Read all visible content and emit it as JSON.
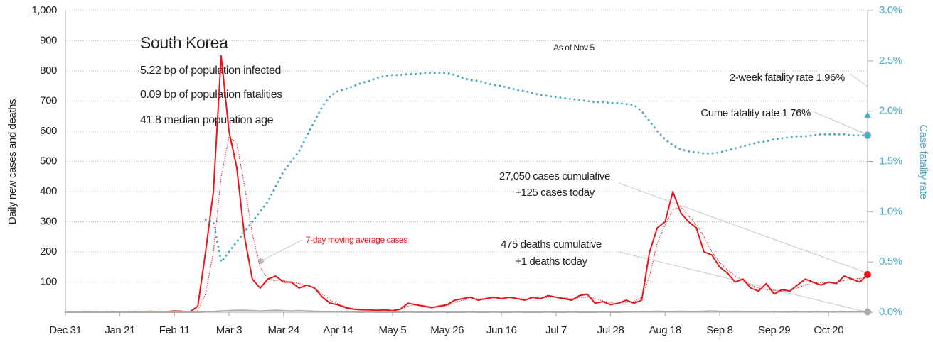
{
  "chart_data": {
    "type": "line",
    "title": "South Korea",
    "subtitle_lines": [
      "5.22 bp of population infected",
      "0.09 bp of population fatalities",
      "41.8 median population age"
    ],
    "as_of": "As of Nov 5",
    "ylabel": "Daily new cases and deaths",
    "y2label": "Case fatality rate",
    "categories": [
      "Dec 31",
      null,
      null,
      null,
      null,
      null,
      null,
      "Jan 21",
      null,
      null,
      null,
      null,
      null,
      null,
      "Feb 11",
      null,
      null,
      null,
      null,
      null,
      null,
      "Mar 3",
      null,
      null,
      null,
      null,
      null,
      null,
      "Mar 24",
      null,
      null,
      null,
      null,
      null,
      null,
      "Apr 14",
      null,
      null,
      null,
      null,
      null,
      null,
      "May 5",
      null,
      null,
      null,
      null,
      null,
      null,
      "May 26",
      null,
      null,
      null,
      null,
      null,
      null,
      "Jun 16",
      null,
      null,
      null,
      null,
      null,
      null,
      "Jul 7",
      null,
      null,
      null,
      null,
      null,
      null,
      "Jul 28",
      null,
      null,
      null,
      null,
      null,
      null,
      "Aug 18",
      null,
      null,
      null,
      null,
      null,
      null,
      "Sep 8",
      null,
      null,
      null,
      null,
      null,
      null,
      "Sep 29",
      null,
      null,
      null,
      null,
      null,
      null,
      "Oct 20",
      null,
      null,
      null,
      null,
      null
    ],
    "series": [
      {
        "color": "#e8151b",
        "line_style": "solid",
        "width": 2,
        "end_marker": "circle",
        "values": [
          0,
          0,
          0,
          1,
          0,
          0,
          1,
          0,
          0,
          1,
          2,
          3,
          1,
          2,
          4,
          3,
          1,
          20,
          200,
          400,
          850,
          600,
          480,
          250,
          110,
          80,
          110,
          120,
          100,
          100,
          80,
          90,
          80,
          50,
          30,
          25,
          15,
          10,
          8,
          8,
          6,
          8,
          5,
          10,
          30,
          25,
          20,
          15,
          20,
          25,
          40,
          45,
          50,
          40,
          45,
          50,
          45,
          50,
          45,
          40,
          50,
          45,
          55,
          50,
          45,
          40,
          55,
          60,
          30,
          35,
          25,
          30,
          40,
          30,
          40,
          200,
          280,
          300,
          400,
          330,
          300,
          280,
          200,
          190,
          150,
          130,
          100,
          110,
          80,
          70,
          95,
          60,
          75,
          70,
          90,
          110,
          100,
          90,
          100,
          95,
          120,
          110,
          100,
          125
        ]
      },
      {
        "color": "#e8151b",
        "line_style": "dotted",
        "width": 1.2,
        "values": [
          0,
          0,
          0,
          0,
          0,
          0,
          0,
          0,
          0,
          1,
          1,
          1,
          2,
          2,
          2,
          2,
          2,
          5,
          60,
          200,
          450,
          580,
          560,
          420,
          260,
          150,
          110,
          105,
          105,
          100,
          95,
          90,
          80,
          60,
          40,
          28,
          18,
          12,
          9,
          8,
          7,
          7,
          7,
          10,
          20,
          25,
          22,
          18,
          18,
          22,
          32,
          40,
          45,
          45,
          45,
          47,
          47,
          47,
          46,
          44,
          45,
          46,
          50,
          50,
          48,
          45,
          48,
          50,
          45,
          38,
          32,
          30,
          33,
          35,
          50,
          120,
          230,
          290,
          340,
          350,
          320,
          290,
          250,
          200,
          165,
          140,
          120,
          105,
          90,
          80,
          75,
          72,
          70,
          72,
          80,
          90,
          98,
          98,
          98,
          100,
          105,
          110,
          112,
          115
        ]
      },
      {
        "color": "#aaaaaa",
        "line_style": "solid",
        "width": 2,
        "end_marker": "circle",
        "values": [
          0,
          0,
          0,
          0,
          0,
          0,
          0,
          0,
          0,
          0,
          0,
          0,
          0,
          0,
          0,
          0,
          0,
          0,
          1,
          2,
          4,
          5,
          6,
          6,
          5,
          4,
          5,
          6,
          5,
          4,
          5,
          4,
          3,
          2,
          2,
          1,
          1,
          1,
          0,
          1,
          0,
          0,
          0,
          0,
          1,
          0,
          0,
          0,
          1,
          0,
          0,
          0,
          1,
          0,
          0,
          1,
          0,
          0,
          1,
          0,
          0,
          0,
          1,
          0,
          0,
          1,
          0,
          0,
          0,
          1,
          0,
          0,
          1,
          1,
          2,
          2,
          3,
          2,
          2,
          3,
          2,
          2,
          3,
          4,
          3,
          2,
          3,
          2,
          2,
          2,
          1,
          2,
          1,
          1,
          2,
          1,
          1,
          2,
          1,
          1,
          2,
          1,
          2,
          1
        ]
      },
      {
        "color": "#4bacc6",
        "line_style": "dotted",
        "width": 3,
        "axis": "y2",
        "end_marker": "circle",
        "values": [
          null,
          null,
          null,
          null,
          null,
          null,
          null,
          null,
          null,
          null,
          null,
          null,
          null,
          null,
          null,
          null,
          null,
          null,
          0.92,
          0.9,
          0.5,
          0.6,
          0.7,
          0.8,
          0.9,
          1.0,
          1.1,
          1.25,
          1.4,
          1.5,
          1.6,
          1.75,
          1.9,
          2.05,
          2.15,
          2.2,
          2.22,
          2.25,
          2.28,
          2.3,
          2.33,
          2.35,
          2.36,
          2.36,
          2.37,
          2.37,
          2.38,
          2.38,
          2.38,
          2.38,
          2.36,
          2.33,
          2.31,
          2.3,
          2.28,
          2.26,
          2.25,
          2.23,
          2.21,
          2.2,
          2.18,
          2.16,
          2.15,
          2.14,
          2.13,
          2.12,
          2.11,
          2.1,
          2.09,
          2.09,
          2.08,
          2.08,
          2.07,
          2.06,
          2.0,
          1.9,
          1.8,
          1.72,
          1.66,
          1.62,
          1.6,
          1.59,
          1.58,
          1.58,
          1.59,
          1.61,
          1.63,
          1.65,
          1.67,
          1.69,
          1.7,
          1.72,
          1.73,
          1.74,
          1.75,
          1.75,
          1.76,
          1.77,
          1.77,
          1.77,
          1.77,
          1.76,
          1.76,
          1.76
        ]
      }
    ],
    "ylim": [
      0,
      1000
    ],
    "yticks": [
      100,
      200,
      300,
      400,
      500,
      600,
      700,
      800,
      900,
      {
        "value": 1000,
        "label": "1,000"
      }
    ],
    "y2lim": [
      0,
      3
    ],
    "y2ticks": [
      {
        "value": 0,
        "label": "0.0%"
      },
      {
        "value": 0.5,
        "label": "0.5%"
      },
      {
        "value": 1,
        "label": "1.0%"
      },
      {
        "value": 1.5,
        "label": "1.5%"
      },
      {
        "value": 2,
        "label": "2.0%"
      },
      {
        "value": 2.5,
        "label": "2.5%"
      },
      {
        "value": 3,
        "label": "3.0%"
      }
    ],
    "grid": true,
    "annotations": [
      {
        "text": "2-week fatality rate 1.96%",
        "value": 1.96,
        "axis": "y2",
        "color": "#4bacc6",
        "marker": "triangle"
      },
      {
        "text": "Cume fatality rate 1.76%"
      },
      {
        "text": "27,050 cases cumulative"
      },
      {
        "text": "+125 cases today"
      },
      {
        "text": "475 deaths cumulative"
      },
      {
        "text": "+1 deaths today"
      },
      {
        "text": "7-day moving average cases",
        "color": "#e8151b"
      }
    ]
  }
}
